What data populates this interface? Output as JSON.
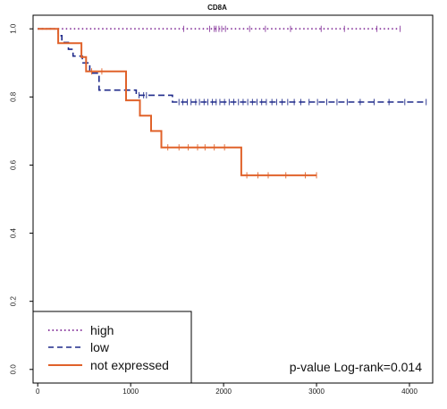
{
  "chart_data": {
    "type": "line",
    "title": "CD8A",
    "xlabel": "",
    "ylabel": "",
    "xlim": [
      -50,
      4250
    ],
    "ylim": [
      -0.04,
      1.04
    ],
    "x_ticks": [
      0,
      1000,
      2000,
      3000,
      4000
    ],
    "x_tick_labels": [
      "0",
      "1000",
      "2000",
      "3000",
      "4000"
    ],
    "y_ticks": [
      0.0,
      0.2,
      0.4,
      0.6,
      0.8,
      1.0
    ],
    "y_tick_labels": [
      "0.0",
      "0.2",
      "0.4",
      "0.6",
      "0.8",
      "1.0"
    ],
    "grid": false,
    "legend_position": "bottom-left",
    "annotation": "p-value Log-rank=0.014",
    "series": [
      {
        "name": "high",
        "color": "#8c3fa0",
        "style": "dotted",
        "steps": [
          [
            0,
            1.0
          ],
          [
            3900,
            1.0
          ]
        ],
        "censor_x": [
          1570,
          1850,
          1900,
          1920,
          1950,
          1980,
          2020,
          2280,
          2450,
          2720,
          3050,
          3300,
          3650,
          3900
        ]
      },
      {
        "name": "low",
        "color": "#1f2a8a",
        "style": "dashed",
        "steps": [
          [
            0,
            1.0
          ],
          [
            220,
            1.0
          ],
          [
            220,
            0.98
          ],
          [
            260,
            0.98
          ],
          [
            260,
            0.96
          ],
          [
            330,
            0.96
          ],
          [
            330,
            0.94
          ],
          [
            380,
            0.94
          ],
          [
            380,
            0.92
          ],
          [
            480,
            0.92
          ],
          [
            480,
            0.9
          ],
          [
            560,
            0.9
          ],
          [
            560,
            0.87
          ],
          [
            660,
            0.87
          ],
          [
            660,
            0.82
          ],
          [
            1060,
            0.82
          ],
          [
            1060,
            0.805
          ],
          [
            1450,
            0.805
          ],
          [
            1450,
            0.785
          ],
          [
            4180,
            0.785
          ]
        ],
        "censor_x": [
          1090,
          1140,
          1170,
          1520,
          1560,
          1610,
          1650,
          1700,
          1740,
          1790,
          1830,
          1880,
          1920,
          1960,
          2010,
          2060,
          2110,
          2160,
          2210,
          2260,
          2310,
          2360,
          2410,
          2460,
          2520,
          2570,
          2630,
          2690,
          2760,
          2830,
          2920,
          3010,
          3110,
          3220,
          3330,
          3470,
          3620,
          3780,
          3950,
          4180
        ]
      },
      {
        "name": "not expressed",
        "color": "#e0622a",
        "style": "solid",
        "steps": [
          [
            0,
            1.0
          ],
          [
            220,
            1.0
          ],
          [
            220,
            0.958
          ],
          [
            470,
            0.958
          ],
          [
            470,
            0.917
          ],
          [
            520,
            0.917
          ],
          [
            520,
            0.875
          ],
          [
            950,
            0.875
          ],
          [
            950,
            0.79
          ],
          [
            1100,
            0.79
          ],
          [
            1100,
            0.745
          ],
          [
            1220,
            0.745
          ],
          [
            1220,
            0.7
          ],
          [
            1330,
            0.7
          ],
          [
            1330,
            0.652
          ],
          [
            2190,
            0.652
          ],
          [
            2190,
            0.57
          ],
          [
            3000,
            0.57
          ]
        ],
        "censor_x": [
          580,
          690,
          1400,
          1520,
          1620,
          1720,
          1800,
          1900,
          2010,
          2250,
          2370,
          2480,
          2670,
          2880,
          3000
        ]
      }
    ]
  }
}
